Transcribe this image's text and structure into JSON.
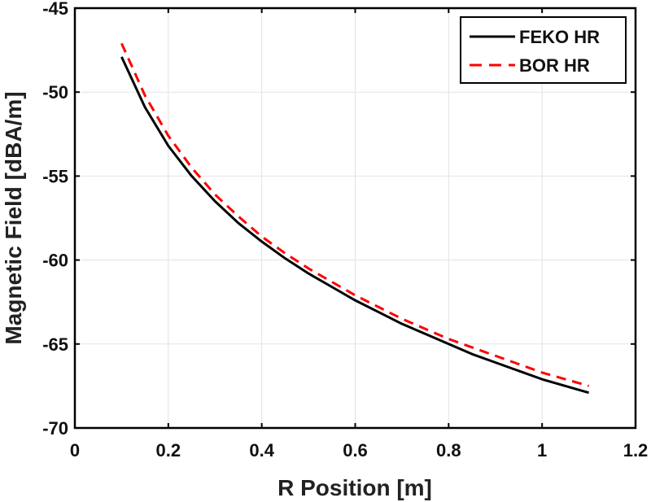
{
  "chart_data": {
    "type": "line",
    "title": "",
    "xlabel": "R Position [m]",
    "ylabel": "Magnetic Field [dBA/m]",
    "xlim": [
      0,
      1.2
    ],
    "ylim": [
      -70,
      -45
    ],
    "xticks": [
      0,
      0.2,
      0.4,
      0.6,
      0.8,
      1,
      1.2
    ],
    "yticks": [
      -70,
      -65,
      -60,
      -55,
      -50,
      -45
    ],
    "grid": true,
    "legend_position": "top-right",
    "series": [
      {
        "name": "FEKO HR",
        "color": "#000000",
        "style": "solid",
        "x": [
          0.1,
          0.15,
          0.2,
          0.25,
          0.3,
          0.35,
          0.4,
          0.45,
          0.5,
          0.55,
          0.6,
          0.65,
          0.7,
          0.75,
          0.8,
          0.85,
          0.9,
          0.95,
          1.0,
          1.05,
          1.1
        ],
        "y": [
          -47.9,
          -50.9,
          -53.2,
          -55.0,
          -56.5,
          -57.8,
          -58.9,
          -59.9,
          -60.8,
          -61.6,
          -62.4,
          -63.1,
          -63.8,
          -64.4,
          -65.0,
          -65.6,
          -66.1,
          -66.6,
          -67.1,
          -67.5,
          -67.9
        ]
      },
      {
        "name": "BOR HR",
        "color": "#ff0000",
        "style": "dashed",
        "x": [
          0.1,
          0.15,
          0.2,
          0.25,
          0.3,
          0.35,
          0.4,
          0.45,
          0.5,
          0.55,
          0.6,
          0.65,
          0.7,
          0.75,
          0.8,
          0.85,
          0.9,
          0.95,
          1.0,
          1.05,
          1.1
        ],
        "y": [
          -47.1,
          -50.2,
          -52.6,
          -54.5,
          -56.1,
          -57.4,
          -58.6,
          -59.6,
          -60.5,
          -61.3,
          -62.1,
          -62.8,
          -63.5,
          -64.1,
          -64.7,
          -65.2,
          -65.7,
          -66.2,
          -66.7,
          -67.1,
          -67.5
        ]
      }
    ]
  }
}
